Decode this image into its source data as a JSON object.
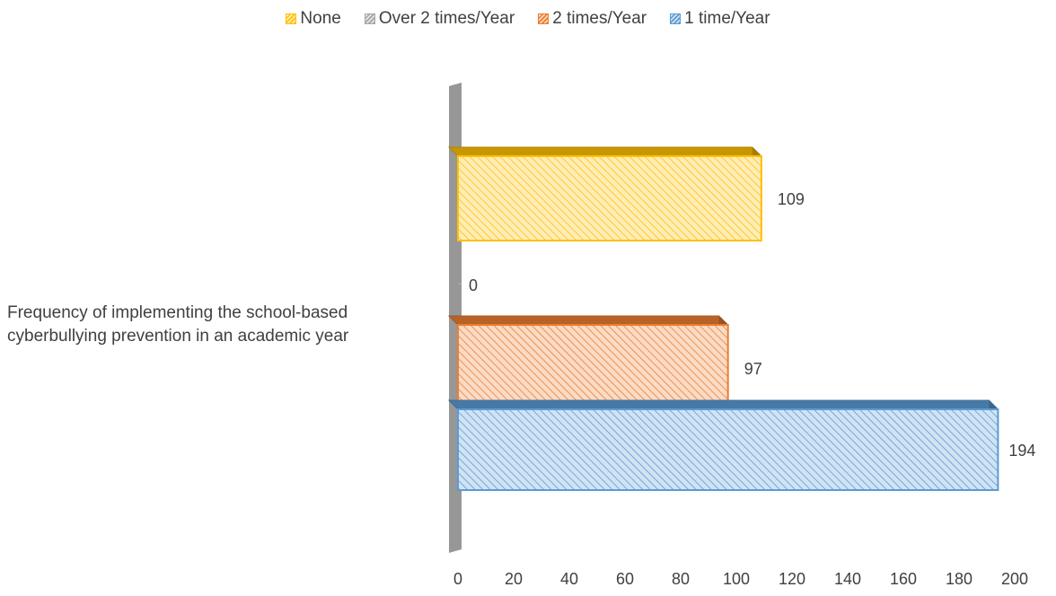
{
  "chart_data": {
    "type": "bar",
    "orientation": "horizontal",
    "three_d": true,
    "categories": [
      "Frequency of implementing the school-based cyberbullying prevention in an academic year"
    ],
    "series": [
      {
        "name": "None",
        "values": [
          109
        ],
        "color": "#FFC000",
        "pattern": "diagonal-hatch"
      },
      {
        "name": "Over 2 times/Year",
        "values": [
          0
        ],
        "color": "#A5A5A5",
        "pattern": "diagonal-hatch"
      },
      {
        "name": "2 times/Year",
        "values": [
          97
        ],
        "color": "#ED7D31",
        "pattern": "diagonal-hatch"
      },
      {
        "name": "1 time/Year",
        "values": [
          194
        ],
        "color": "#5B9BD5",
        "pattern": "diagonal-hatch"
      }
    ],
    "data_labels": [
      "109",
      "0",
      "97",
      "194"
    ],
    "xlim": [
      0,
      200
    ],
    "x_ticks": [
      "0",
      "20",
      "40",
      "60",
      "80",
      "100",
      "120",
      "140",
      "160",
      "180",
      "200"
    ],
    "grid": false,
    "legend_position": "top",
    "legend": [
      "None",
      "Over 2 times/Year",
      "2 times/Year",
      "1 time/Year"
    ]
  },
  "category_label_lines": [
    "Frequency of implementing the school-based",
    "cyberbullying prevention in an academic year"
  ]
}
